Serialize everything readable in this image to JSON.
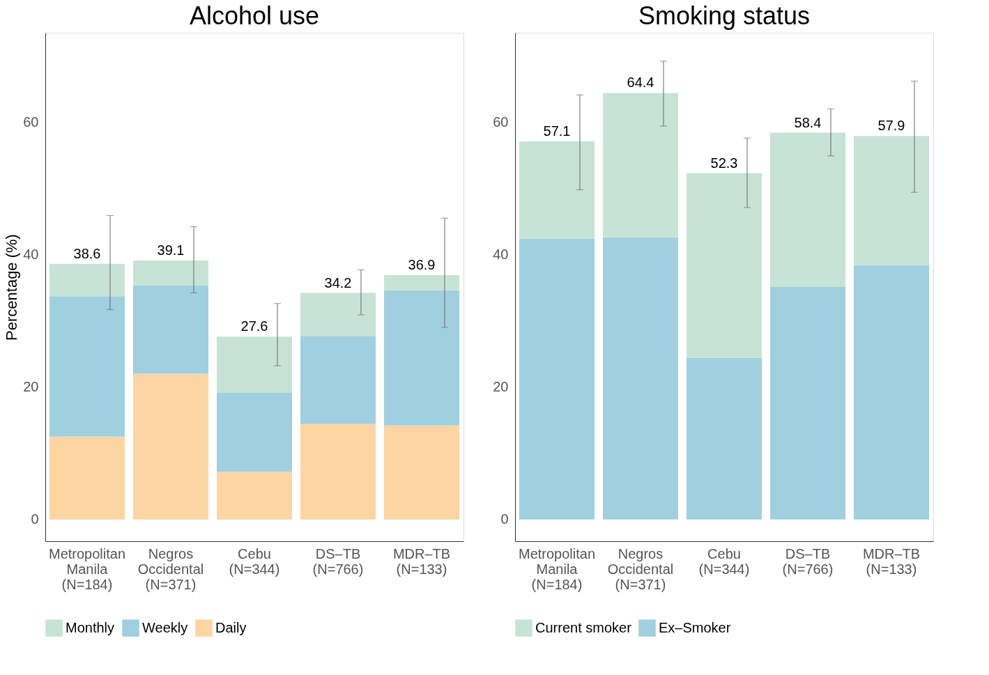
{
  "chart_data": [
    {
      "type": "bar",
      "title": "Alcohol use",
      "ylabel": "Percentage (%)",
      "stacked": true,
      "legend": "bottom",
      "grid": false,
      "categories": [
        "Metropolitan\nManila\n(N=184)",
        "Negros\nOccidental\n(N=371)",
        "Cebu\n(N=344)",
        "DS–TB\n(N=766)",
        "MDR–TB\n(N=133)"
      ],
      "ylim": [
        -3.3,
        73.5
      ],
      "yticks": [
        0,
        20,
        40,
        60
      ],
      "series": [
        {
          "name": "Daily",
          "color": "#fcd5a3",
          "values": [
            12.5,
            22.0,
            7.2,
            14.4,
            14.2
          ]
        },
        {
          "name": "Weekly",
          "color": "#a0cfe0",
          "values": [
            21.2,
            13.3,
            11.9,
            13.3,
            20.4
          ]
        },
        {
          "name": "Monthly",
          "color": "#c7e3d6",
          "values": [
            4.9,
            3.8,
            8.5,
            6.5,
            2.3
          ],
          "errors": [
            [
              31.7,
              45.9
            ],
            [
              34.2,
              44.2
            ],
            [
              23.2,
              32.6
            ],
            [
              30.9,
              37.7
            ],
            [
              29.0,
              45.5
            ]
          ]
        }
      ],
      "totals": [
        "38.6",
        "39.1",
        "27.6",
        "34.2",
        "36.9"
      ]
    },
    {
      "type": "bar",
      "title": "Smoking status",
      "stacked": true,
      "legend": "bottom",
      "grid": false,
      "categories": [
        "Metropolitan\nManila\n(N=184)",
        "Negros\nOccidental\n(N=371)",
        "Cebu\n(N=344)",
        "DS–TB\n(N=766)",
        "MDR–TB\n(N=133)"
      ],
      "ylim": [
        -3.3,
        73.5
      ],
      "yticks": [
        0,
        20,
        40,
        60
      ],
      "series": [
        {
          "name": "Ex–Smoker",
          "color": "#a0cfe0",
          "values": [
            42.4,
            42.6,
            24.4,
            35.1,
            38.4
          ]
        },
        {
          "name": "Current smoker",
          "color": "#c7e3d6",
          "values": [
            14.7,
            21.8,
            27.9,
            23.3,
            19.5
          ],
          "errors": [
            [
              49.8,
              64.1
            ],
            [
              59.4,
              69.2
            ],
            [
              47.1,
              57.6
            ],
            [
              54.9,
              62.0
            ],
            [
              49.4,
              66.2
            ]
          ]
        }
      ],
      "totals": [
        "57.1",
        "64.4",
        "52.3",
        "58.4",
        "57.9"
      ]
    }
  ]
}
